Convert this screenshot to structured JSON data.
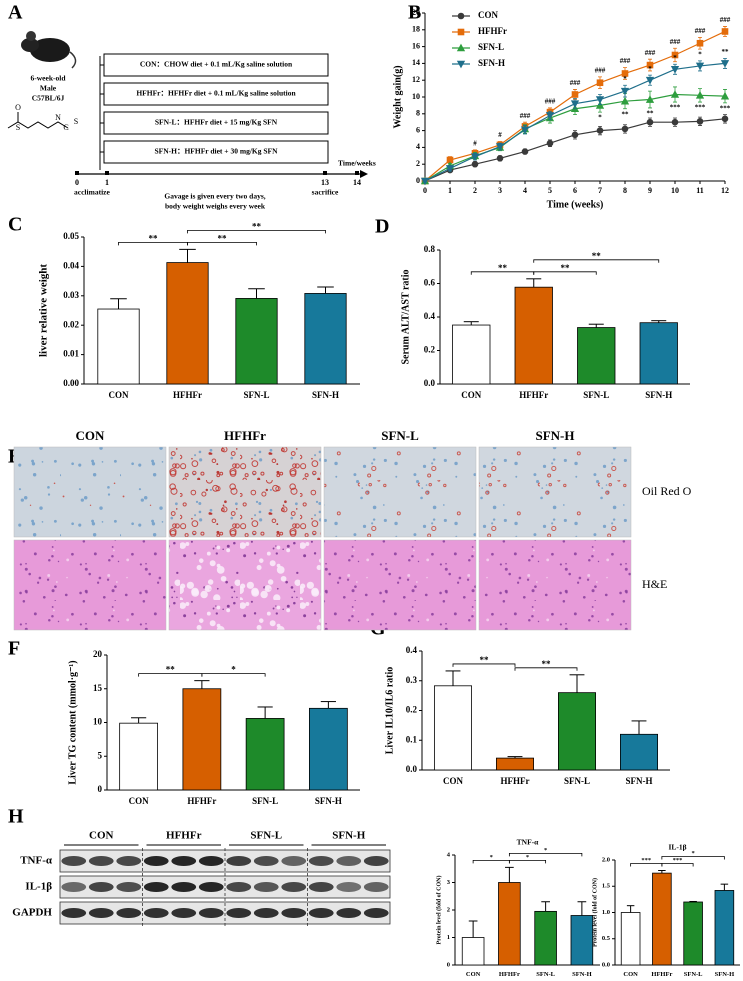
{
  "panel_labels": [
    "A",
    "B",
    "C",
    "D",
    "E",
    "F",
    "G",
    "H"
  ],
  "diagram_a": {
    "mouse": [
      "6-week-old",
      "Male",
      "C57BL/6J"
    ],
    "structure_atoms": [
      "O",
      "S",
      "N",
      "C",
      "S"
    ],
    "groups": [
      "CON：CHOW diet + 0.1 mL/Kg saline solution",
      "HFHFr：HFHFr diet + 0.1 mL/Kg saline solution",
      "SFN-L：HFHFr diet + 15 mg/Kg SFN",
      "SFN-H：HFHFr diet + 30 mg/Kg SFN"
    ],
    "timeline_ticks": [
      "0",
      "1",
      "13",
      "14"
    ],
    "timeline_axis": "Time/weeks",
    "acclimatize": "acclimatize",
    "sacrifice": "sacrifice",
    "notes": [
      "Gavage is given every two days,",
      "body weight weighs every week"
    ]
  },
  "chart_data": [
    {
      "type": "line",
      "ylabel": "Weight gain(g)",
      "xlabel": "Time (weeks)",
      "x": [
        0,
        1,
        2,
        3,
        4,
        5,
        6,
        7,
        8,
        9,
        10,
        11,
        12
      ],
      "xlim": [
        0,
        12
      ],
      "xticks": [
        0,
        1,
        2,
        3,
        4,
        5,
        6,
        7,
        8,
        9,
        10,
        11,
        12
      ],
      "ylim": [
        0,
        20
      ],
      "yticks": [
        0,
        2,
        4,
        6,
        8,
        10,
        12,
        14,
        16,
        18,
        20
      ],
      "series": [
        {
          "name": "CON",
          "color": "#3a3a3a",
          "marker": "circle",
          "values": [
            0,
            1.3,
            2.0,
            2.7,
            3.5,
            4.5,
            5.5,
            6.0,
            6.2,
            7.0,
            7.0,
            7.1,
            7.4
          ],
          "errors": [
            0,
            0.2,
            0.3,
            0.3,
            0.3,
            0.4,
            0.5,
            0.5,
            0.5,
            0.5,
            0.5,
            0.5,
            0.5
          ]
        },
        {
          "name": "HFHFr",
          "color": "#e46c0a",
          "marker": "square",
          "values": [
            0,
            2.5,
            3.3,
            4.3,
            6.5,
            8.2,
            10.3,
            11.7,
            12.8,
            13.8,
            15.0,
            16.4,
            17.8
          ],
          "errors": [
            0,
            0.4,
            0.4,
            0.4,
            0.5,
            0.5,
            0.6,
            0.7,
            0.7,
            0.7,
            0.8,
            0.7,
            0.6
          ],
          "annotations": [
            null,
            null,
            "#",
            "#",
            "###",
            "###",
            "###",
            "###",
            "###",
            "###",
            "###",
            "###",
            "###"
          ]
        },
        {
          "name": "SFN-L",
          "color": "#2e9e3e",
          "marker": "triangle-up",
          "values": [
            0,
            1.8,
            3.0,
            4.0,
            6.2,
            7.5,
            8.6,
            9.0,
            9.5,
            9.7,
            10.3,
            10.2,
            10.1
          ],
          "errors": [
            0,
            0.3,
            0.4,
            0.4,
            0.5,
            0.6,
            0.7,
            0.8,
            0.9,
            1.0,
            0.9,
            0.8,
            0.8
          ],
          "annotations": [
            null,
            null,
            null,
            null,
            null,
            null,
            null,
            "*",
            "**",
            "**",
            "***",
            "***",
            "***"
          ]
        },
        {
          "name": "SFN-H",
          "color": "#1f6f8b",
          "marker": "triangle-down",
          "values": [
            0,
            1.5,
            2.9,
            4.1,
            6.1,
            7.8,
            9.2,
            9.7,
            10.7,
            12.0,
            13.3,
            13.7,
            14.0
          ],
          "errors": [
            0,
            0.3,
            0.4,
            0.4,
            0.5,
            0.5,
            0.6,
            0.6,
            0.7,
            0.6,
            0.6,
            0.6,
            0.6
          ],
          "annotations": [
            null,
            null,
            null,
            null,
            null,
            null,
            null,
            null,
            "*",
            "*",
            "*",
            "*",
            "**"
          ]
        }
      ]
    },
    {
      "type": "bar",
      "ylabel": "liver relative weight",
      "categories": [
        "CON",
        "HFHFr",
        "SFN-L",
        "SFN-H"
      ],
      "values": [
        0.0255,
        0.0413,
        0.0291,
        0.0308
      ],
      "errors": [
        0.0035,
        0.0045,
        0.0033,
        0.0022
      ],
      "colors": [
        "#ffffff",
        "#d65f00",
        "#1e8a2a",
        "#17799b"
      ],
      "ylim": [
        0,
        0.05
      ],
      "yticks": [
        {
          "value": 0,
          "label": "0.00"
        },
        0.01,
        0.02,
        0.03,
        0.04,
        0.05
      ],
      "significance": [
        {
          "from": 0,
          "to": 1,
          "label": "**"
        },
        {
          "from": 1,
          "to": 2,
          "label": "**"
        },
        {
          "from": 1,
          "to": 3,
          "label": "**"
        }
      ]
    },
    {
      "type": "bar",
      "ylabel": "Serum ALT/AST ratio",
      "categories": [
        "CON",
        "HFHFr",
        "SFN-L",
        "SFN-H"
      ],
      "values": [
        0.352,
        0.578,
        0.337,
        0.366
      ],
      "errors": [
        0.02,
        0.05,
        0.02,
        0.012
      ],
      "colors": [
        "#ffffff",
        "#d65f00",
        "#1e8a2a",
        "#17799b"
      ],
      "ylim": [
        0,
        0.8
      ],
      "yticks": [
        {
          "value": 0,
          "label": "0.0"
        },
        0.2,
        0.4,
        0.6,
        0.8
      ],
      "significance": [
        {
          "from": 0,
          "to": 1,
          "label": "**"
        },
        {
          "from": 1,
          "to": 2,
          "label": "**"
        },
        {
          "from": 1,
          "to": 3,
          "label": "**"
        }
      ]
    },
    {
      "type": "bar",
      "ylabel": "Liver TG content (mmol·g⁻¹)",
      "categories": [
        "CON",
        "HFHFr",
        "SFN-L",
        "SFN-H"
      ],
      "values": [
        9.9,
        15.0,
        10.6,
        12.1
      ],
      "errors": [
        0.8,
        1.2,
        1.7,
        1.0
      ],
      "colors": [
        "#ffffff",
        "#d65f00",
        "#1e8a2a",
        "#17799b"
      ],
      "ylim": [
        0,
        20
      ],
      "yticks": [
        0,
        5,
        10,
        15,
        20
      ],
      "significance": [
        {
          "from": 0,
          "to": 1,
          "label": "**"
        },
        {
          "from": 1,
          "to": 2,
          "label": "*"
        }
      ]
    },
    {
      "type": "bar",
      "ylabel": "Liver  IL10/IL6 ratio",
      "categories": [
        "CON",
        "HFHFr",
        "SFN-L",
        "SFN-H"
      ],
      "values": [
        0.283,
        0.04,
        0.26,
        0.12
      ],
      "errors": [
        0.05,
        0.005,
        0.06,
        0.045
      ],
      "colors": [
        "#ffffff",
        "#d65f00",
        "#1e8a2a",
        "#17799b"
      ],
      "ylim": [
        0,
        0.4
      ],
      "yticks": [
        {
          "value": 0,
          "label": "0.0"
        },
        0.1,
        0.2,
        0.3,
        0.4
      ],
      "significance": [
        {
          "from": 0,
          "to": 1,
          "label": "**"
        },
        {
          "from": 1,
          "to": 2,
          "label": "**"
        }
      ]
    },
    {
      "type": "bar",
      "title": "TNF-α",
      "ylabel": "Protein level (fold of CON)",
      "categories": [
        "CON",
        "HFHFr",
        "SFN-L",
        "SFN-H"
      ],
      "values": [
        1.0,
        3.0,
        1.95,
        1.8
      ],
      "errors": [
        0.6,
        0.55,
        0.35,
        0.5
      ],
      "colors": [
        "#ffffff",
        "#d65f00",
        "#1e8a2a",
        "#17799b"
      ],
      "ylim": [
        0,
        4
      ],
      "yticks": [
        0,
        1,
        2,
        3,
        4
      ],
      "significance": [
        {
          "from": 0,
          "to": 1,
          "label": "*"
        },
        {
          "from": 1,
          "to": 2,
          "label": "*"
        },
        {
          "from": 1,
          "to": 3,
          "label": "*"
        }
      ]
    },
    {
      "type": "bar",
      "title": "IL-1β",
      "ylabel": "Protein level (fold of CON)",
      "categories": [
        "CON",
        "HFHFr",
        "SFN-L",
        "SFN-H"
      ],
      "values": [
        1.0,
        1.75,
        1.2,
        1.42
      ],
      "errors": [
        0.13,
        0.05,
        0.01,
        0.12
      ],
      "colors": [
        "#ffffff",
        "#d65f00",
        "#1e8a2a",
        "#17799b"
      ],
      "ylim": [
        0,
        2
      ],
      "yticks": [
        {
          "value": 0,
          "label": "0.0"
        },
        0.5,
        {
          "value": 1,
          "label": "1.0"
        },
        1.5,
        {
          "value": 2,
          "label": "2.0"
        }
      ],
      "significance": [
        {
          "from": 0,
          "to": 1,
          "label": "***"
        },
        {
          "from": 1,
          "to": 2,
          "label": "***"
        },
        {
          "from": 1,
          "to": 3,
          "label": "*"
        }
      ]
    }
  ],
  "panel_e": {
    "columns": [
      "CON",
      "HFHFr",
      "SFN-L",
      "SFN-H"
    ],
    "rows": [
      "Oil Red O",
      "H&E"
    ]
  },
  "panel_h_blot": {
    "groups": [
      "CON",
      "HFHFr",
      "SFN-L",
      "SFN-H"
    ],
    "rows": [
      "TNF-α",
      "IL-1β",
      "GAPDH"
    ]
  }
}
